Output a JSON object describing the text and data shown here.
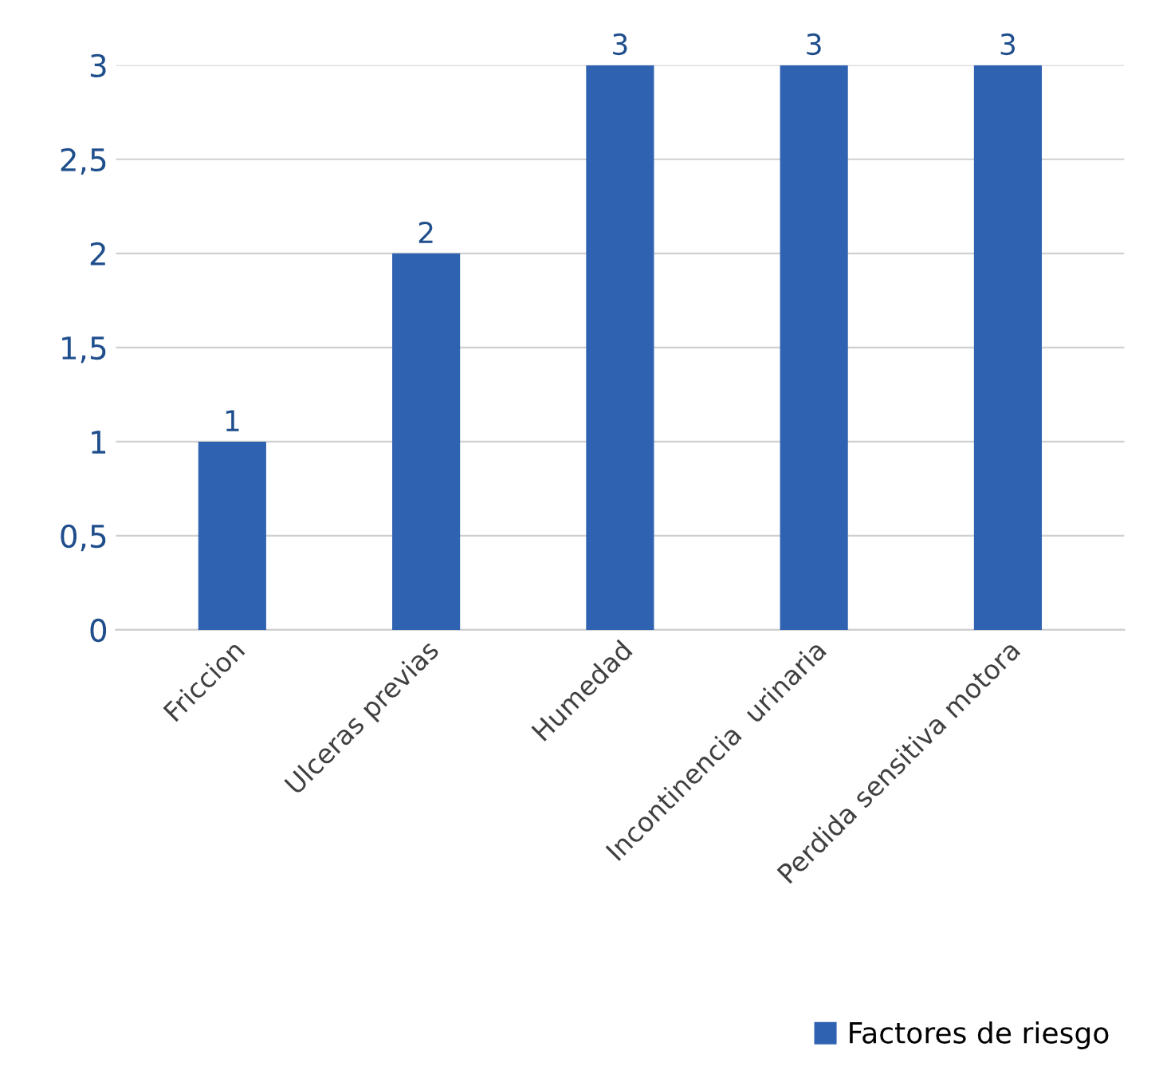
{
  "chart_data": {
    "type": "bar",
    "categories": [
      "Friccion",
      "Ulceras previas",
      "Humedad",
      "Incontinencia  urinaria",
      "Perdida sensitiva motora"
    ],
    "series": [
      {
        "name": "Factores de riesgo",
        "color": "#2f62b0",
        "values": [
          1,
          2,
          3,
          3,
          3
        ]
      }
    ],
    "ylim": [
      0,
      3
    ],
    "yticks": [
      0,
      {
        "value": 0.5,
        "label": "0,5"
      },
      1,
      {
        "value": 1.5,
        "label": "1,5"
      },
      2,
      {
        "value": 2.5,
        "label": "2,5"
      },
      3
    ],
    "grid": "y",
    "legend": "bottom right",
    "data_labels": true
  }
}
